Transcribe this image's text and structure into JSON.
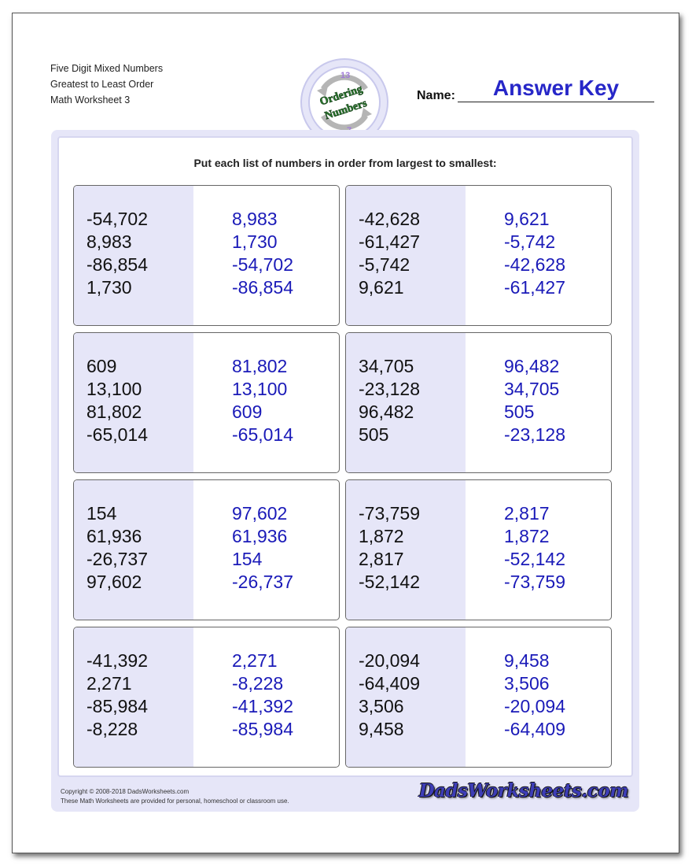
{
  "header": {
    "line1": "Five Digit Mixed Numbers",
    "line2": "Greatest to Least Order",
    "line3": "Math Worksheet 3"
  },
  "logo": {
    "top_number": "13",
    "word1": "Ordering",
    "word2": "Numbers",
    "bottom_number": "7"
  },
  "name": {
    "label": "Name:",
    "value": "Answer Key"
  },
  "instruction": "Put each list of numbers in order from largest to smallest:",
  "problems": [
    {
      "given": [
        "-54,702",
        "8,983",
        "-86,854",
        "1,730"
      ],
      "answer": [
        "8,983",
        "1,730",
        "-54,702",
        "-86,854"
      ]
    },
    {
      "given": [
        "-42,628",
        "-61,427",
        "-5,742",
        "9,621"
      ],
      "answer": [
        "9,621",
        "-5,742",
        "-42,628",
        "-61,427"
      ]
    },
    {
      "given": [
        "609",
        "13,100",
        "81,802",
        "-65,014"
      ],
      "answer": [
        "81,802",
        "13,100",
        "609",
        "-65,014"
      ]
    },
    {
      "given": [
        "34,705",
        "-23,128",
        "96,482",
        "505"
      ],
      "answer": [
        "96,482",
        "34,705",
        "505",
        "-23,128"
      ]
    },
    {
      "given": [
        "154",
        "61,936",
        "-26,737",
        "97,602"
      ],
      "answer": [
        "97,602",
        "61,936",
        "154",
        "-26,737"
      ]
    },
    {
      "given": [
        "-73,759",
        "1,872",
        "2,817",
        "-52,142"
      ],
      "answer": [
        "2,817",
        "1,872",
        "-52,142",
        "-73,759"
      ]
    },
    {
      "given": [
        "-41,392",
        "2,271",
        "-85,984",
        "-8,228"
      ],
      "answer": [
        "2,271",
        "-8,228",
        "-41,392",
        "-85,984"
      ]
    },
    {
      "given": [
        "-20,094",
        "-64,409",
        "3,506",
        "9,458"
      ],
      "answer": [
        "9,458",
        "3,506",
        "-20,094",
        "-64,409"
      ]
    }
  ],
  "footer": {
    "copyright": "Copyright © 2008-2018 DadsWorksheets.com",
    "notice": "These Math Worksheets are provided for personal, homeschool or classroom use.",
    "brand": "DadsWorksheets.com"
  },
  "colors": {
    "accent": "#2727c8",
    "answer": "#1a1ab8",
    "panel": "#e6e6f8",
    "logo_green": "#2e7d32"
  }
}
